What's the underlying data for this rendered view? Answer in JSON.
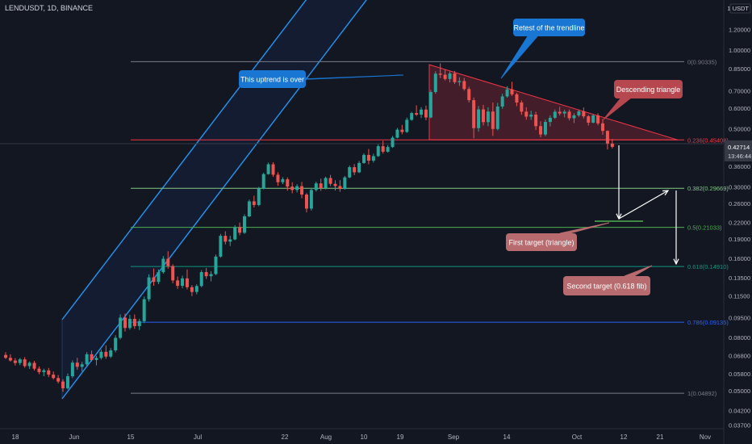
{
  "header": {
    "title": "LENDUSDT, 1D, BINANCE"
  },
  "chart_data": {
    "type": "candlestick",
    "symbol": "LENDUSDT",
    "interval": "1D",
    "exchange": "BINANCE",
    "y_scale": "log",
    "y_currency": "USDT",
    "y_ticks": [
      "1.20000",
      "1.00000",
      "0.85000",
      "0.70000",
      "0.60000",
      "0.50000",
      "0.42714",
      "0.36000",
      "0.30000",
      "0.26000",
      "0.22000",
      "0.19000",
      "0.16000",
      "0.13500",
      "0.11500",
      "0.09500",
      "0.08000",
      "0.06800",
      "0.05800",
      "0.05000",
      "0.04200",
      "0.03700"
    ],
    "x_ticks": [
      "18",
      "Jun",
      "15",
      "Jul",
      "22",
      "Aug",
      "10",
      "19",
      "Sep",
      "14",
      "Oct",
      "12",
      "21",
      "Nov"
    ],
    "last_price": "0.42714",
    "countdown": "13:46:44",
    "fib_levels": [
      {
        "label": "0(0.90335)",
        "value": 0.90335,
        "color": "#787b86"
      },
      {
        "label": "0.236(0.45408)",
        "value": 0.45408,
        "color": "#f23645"
      },
      {
        "label": "0.382(0.29669)",
        "value": 0.29669,
        "color": "#81c784"
      },
      {
        "label": "0.5(0.21033)",
        "value": 0.21033,
        "color": "#4caf50"
      },
      {
        "label": "0.618(0.14910)",
        "value": 0.1491,
        "color": "#089981"
      },
      {
        "label": "0.786(0.09135)",
        "value": 0.09135,
        "color": "#2962ff"
      },
      {
        "label": "1(0.04892)",
        "value": 0.04892,
        "color": "#787b86"
      }
    ],
    "annotations": [
      {
        "text": "Retest of the trendline",
        "color": "#1976d2"
      },
      {
        "text": "This uptrend is over",
        "color": "#1976d2"
      },
      {
        "text": "Descending triangle",
        "color": "#b7474f"
      },
      {
        "text": "First target (triangle)",
        "color": "#b76b6e"
      },
      {
        "text": "Second target (0.618 fib)",
        "color": "#b76b6e"
      }
    ],
    "colors": {
      "up": "#26a69a",
      "down": "#ef5350",
      "background": "#131722",
      "channel": "#2196f3",
      "triangle": "#f23645"
    },
    "grid": false,
    "ohlc": [
      [
        0.0685,
        0.0702,
        0.0661,
        0.0668
      ],
      [
        0.0668,
        0.0689,
        0.0646,
        0.0652
      ],
      [
        0.0652,
        0.0666,
        0.0624,
        0.0638
      ],
      [
        0.0638,
        0.0667,
        0.0626,
        0.0659
      ],
      [
        0.0659,
        0.0672,
        0.0612,
        0.0621
      ],
      [
        0.0621,
        0.0647,
        0.0606,
        0.0639
      ],
      [
        0.0639,
        0.065,
        0.0597,
        0.0607
      ],
      [
        0.0607,
        0.0619,
        0.0578,
        0.0589
      ],
      [
        0.0589,
        0.0607,
        0.0568,
        0.0598
      ],
      [
        0.0598,
        0.0611,
        0.0564,
        0.0576
      ],
      [
        0.0576,
        0.0592,
        0.0552,
        0.0559
      ],
      [
        0.0559,
        0.0574,
        0.0533,
        0.0542
      ],
      [
        0.0542,
        0.0553,
        0.0495,
        0.0511
      ],
      [
        0.0511,
        0.0582,
        0.0506,
        0.0568
      ],
      [
        0.0568,
        0.0653,
        0.0559,
        0.064
      ],
      [
        0.064,
        0.0668,
        0.0601,
        0.0617
      ],
      [
        0.0617,
        0.0645,
        0.0592,
        0.0631
      ],
      [
        0.0631,
        0.0702,
        0.0622,
        0.0689
      ],
      [
        0.0689,
        0.0712,
        0.0647,
        0.0655
      ],
      [
        0.0655,
        0.0679,
        0.0625,
        0.0667
      ],
      [
        0.0667,
        0.0718,
        0.0658,
        0.0704
      ],
      [
        0.0704,
        0.0745,
        0.0662,
        0.0675
      ],
      [
        0.0675,
        0.0727,
        0.0667,
        0.0713
      ],
      [
        0.0713,
        0.0815,
        0.0701,
        0.0796
      ],
      [
        0.0796,
        0.0978,
        0.0785,
        0.0951
      ],
      [
        0.0951,
        0.0985,
        0.0842,
        0.0868
      ],
      [
        0.0868,
        0.0974,
        0.0855,
        0.0941
      ],
      [
        0.0941,
        0.0978,
        0.0862,
        0.0883
      ],
      [
        0.0883,
        0.0941,
        0.0853,
        0.0922
      ],
      [
        0.0922,
        0.1145,
        0.0906,
        0.1118
      ],
      [
        0.1118,
        0.1392,
        0.1095,
        0.1355
      ],
      [
        0.1355,
        0.1465,
        0.1258,
        0.1302
      ],
      [
        0.1302,
        0.1452,
        0.1277,
        0.1419
      ],
      [
        0.1419,
        0.1635,
        0.14,
        0.1596
      ],
      [
        0.1596,
        0.1705,
        0.1462,
        0.1497
      ],
      [
        0.1497,
        0.152,
        0.1286,
        0.1319
      ],
      [
        0.1319,
        0.1365,
        0.1225,
        0.1258
      ],
      [
        0.1258,
        0.1376,
        0.1232,
        0.1343
      ],
      [
        0.1343,
        0.1453,
        0.1219,
        0.1243
      ],
      [
        0.1243,
        0.1266,
        0.1149,
        0.1192
      ],
      [
        0.1192,
        0.1275,
        0.1168,
        0.1256
      ],
      [
        0.1256,
        0.1445,
        0.1242,
        0.142
      ],
      [
        0.142,
        0.1472,
        0.1337,
        0.1369
      ],
      [
        0.1369,
        0.1431,
        0.1309,
        0.1395
      ],
      [
        0.1395,
        0.1656,
        0.1382,
        0.1627
      ],
      [
        0.1627,
        0.1986,
        0.1611,
        0.1953
      ],
      [
        0.1953,
        0.2033,
        0.1811,
        0.1856
      ],
      [
        0.1856,
        0.1954,
        0.1786,
        0.1892
      ],
      [
        0.1892,
        0.2145,
        0.1877,
        0.2109
      ],
      [
        0.2109,
        0.2195,
        0.1963,
        0.2007
      ],
      [
        0.2007,
        0.2359,
        0.1986,
        0.2318
      ],
      [
        0.2318,
        0.2686,
        0.2301,
        0.2645
      ],
      [
        0.2645,
        0.2779,
        0.2506,
        0.2561
      ],
      [
        0.2561,
        0.3004,
        0.2534,
        0.2955
      ],
      [
        0.2955,
        0.3401,
        0.2938,
        0.336
      ],
      [
        0.336,
        0.3718,
        0.3343,
        0.3663
      ],
      [
        0.3663,
        0.3731,
        0.3283,
        0.3343
      ],
      [
        0.3343,
        0.3418,
        0.3032,
        0.3129
      ],
      [
        0.3129,
        0.3272,
        0.3078,
        0.3211
      ],
      [
        0.3211,
        0.3265,
        0.2905,
        0.3011
      ],
      [
        0.3011,
        0.3128,
        0.2838,
        0.2923
      ],
      [
        0.2923,
        0.3076,
        0.286,
        0.3022
      ],
      [
        0.3022,
        0.3138,
        0.2719,
        0.2808
      ],
      [
        0.2808,
        0.2842,
        0.2399,
        0.2481
      ],
      [
        0.2481,
        0.2974,
        0.2439,
        0.2923
      ],
      [
        0.2923,
        0.3145,
        0.2882,
        0.3097
      ],
      [
        0.3097,
        0.323,
        0.2902,
        0.297
      ],
      [
        0.297,
        0.3286,
        0.2936,
        0.3248
      ],
      [
        0.3248,
        0.3337,
        0.3028,
        0.3085
      ],
      [
        0.3085,
        0.3185,
        0.2909,
        0.3025
      ],
      [
        0.3025,
        0.3187,
        0.2877,
        0.2949
      ],
      [
        0.2949,
        0.3307,
        0.2932,
        0.3266
      ],
      [
        0.3266,
        0.3624,
        0.3241,
        0.3572
      ],
      [
        0.3572,
        0.3672,
        0.3331,
        0.3415
      ],
      [
        0.3415,
        0.3772,
        0.339,
        0.3706
      ],
      [
        0.3706,
        0.4035,
        0.368,
        0.3979
      ],
      [
        0.3979,
        0.4191,
        0.3663,
        0.3783
      ],
      [
        0.3783,
        0.402,
        0.3722,
        0.3937
      ],
      [
        0.3937,
        0.4366,
        0.3908,
        0.4296
      ],
      [
        0.4296,
        0.4506,
        0.4026,
        0.4093
      ],
      [
        0.4093,
        0.4335,
        0.4059,
        0.4265
      ],
      [
        0.4265,
        0.4701,
        0.4232,
        0.463
      ],
      [
        0.463,
        0.5042,
        0.4604,
        0.4969
      ],
      [
        0.4969,
        0.5179,
        0.4769,
        0.4867
      ],
      [
        0.4867,
        0.5523,
        0.4829,
        0.5419
      ],
      [
        0.5419,
        0.5811,
        0.5374,
        0.5748
      ],
      [
        0.5748,
        0.6154,
        0.5601,
        0.5671
      ],
      [
        0.5671,
        0.6054,
        0.5506,
        0.5928
      ],
      [
        0.5928,
        0.6141,
        0.5397,
        0.553
      ],
      [
        0.553,
        0.7052,
        0.5497,
        0.6917
      ],
      [
        0.6917,
        0.8305,
        0.6816,
        0.8131
      ],
      [
        0.8131,
        0.8902,
        0.7819,
        0.8055
      ],
      [
        0.8055,
        0.8433,
        0.7659,
        0.7761
      ],
      [
        0.7761,
        0.8285,
        0.7534,
        0.8149
      ],
      [
        0.8149,
        0.8329,
        0.7423,
        0.7546
      ],
      [
        0.7546,
        0.7877,
        0.7303,
        0.7619
      ],
      [
        0.7619,
        0.7831,
        0.7008,
        0.7103
      ],
      [
        0.7103,
        0.7244,
        0.6314,
        0.6441
      ],
      [
        0.6441,
        0.6594,
        0.4603,
        0.5036
      ],
      [
        0.5036,
        0.6118,
        0.4886,
        0.5937
      ],
      [
        0.5937,
        0.6183,
        0.5155,
        0.5307
      ],
      [
        0.5307,
        0.6052,
        0.5121,
        0.5827
      ],
      [
        0.5827,
        0.6311,
        0.4706,
        0.4999
      ],
      [
        0.4999,
        0.6289,
        0.494,
        0.609
      ],
      [
        0.609,
        0.6812,
        0.5969,
        0.6656
      ],
      [
        0.6656,
        0.7278,
        0.6581,
        0.708
      ],
      [
        0.708,
        0.7574,
        0.6683,
        0.6779
      ],
      [
        0.6779,
        0.6869,
        0.6109,
        0.6307
      ],
      [
        0.6307,
        0.6424,
        0.5665,
        0.5822
      ],
      [
        0.5822,
        0.6053,
        0.5422,
        0.5573
      ],
      [
        0.5573,
        0.5868,
        0.5415,
        0.5669
      ],
      [
        0.5669,
        0.5818,
        0.4958,
        0.5124
      ],
      [
        0.5124,
        0.5351,
        0.4642,
        0.4761
      ],
      [
        0.4761,
        0.5432,
        0.4694,
        0.5318
      ],
      [
        0.5318,
        0.5634,
        0.5112,
        0.5516
      ],
      [
        0.5516,
        0.5934,
        0.5458,
        0.5817
      ],
      [
        0.5817,
        0.6073,
        0.5627,
        0.5728
      ],
      [
        0.5728,
        0.5924,
        0.5538,
        0.5821
      ],
      [
        0.5821,
        0.5932,
        0.5389,
        0.5494
      ],
      [
        0.5494,
        0.5737,
        0.5264,
        0.5633
      ],
      [
        0.5633,
        0.5934,
        0.5555,
        0.5839
      ],
      [
        0.5839,
        0.6038,
        0.5486,
        0.5587
      ],
      [
        0.5587,
        0.5647,
        0.5153,
        0.5284
      ],
      [
        0.5284,
        0.5699,
        0.5254,
        0.5631
      ],
      [
        0.5631,
        0.5739,
        0.5166,
        0.5252
      ],
      [
        0.5252,
        0.5452,
        0.4751,
        0.4914
      ],
      [
        0.4914,
        0.4938,
        0.4174,
        0.4396
      ],
      [
        0.4396,
        0.4576,
        0.4212,
        0.4271
      ]
    ]
  }
}
